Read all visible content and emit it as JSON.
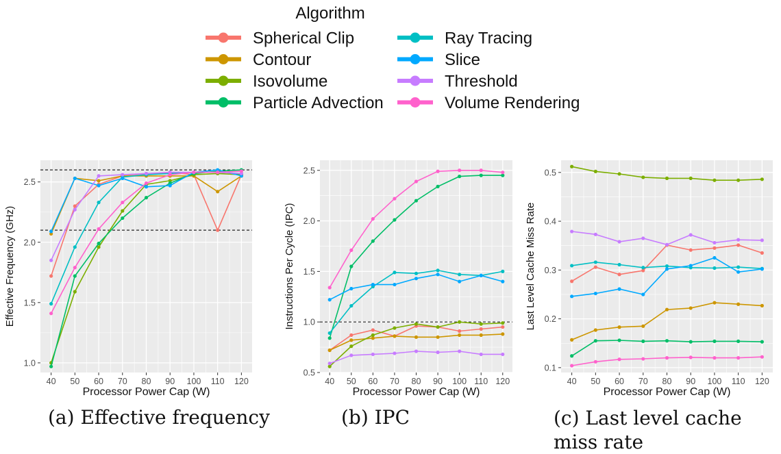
{
  "legend": {
    "title": "Algorithm",
    "items": [
      {
        "name": "Spherical Clip",
        "color": "#F8766D"
      },
      {
        "name": "Contour",
        "color": "#CD9600"
      },
      {
        "name": "Isovolume",
        "color": "#7CAE00"
      },
      {
        "name": "Particle Advection",
        "color": "#00BE67"
      },
      {
        "name": "Ray Tracing",
        "color": "#00BFC4"
      },
      {
        "name": "Slice",
        "color": "#00A9FF"
      },
      {
        "name": "Threshold",
        "color": "#C77CFF"
      },
      {
        "name": "Volume Rendering",
        "color": "#FF61CC"
      }
    ]
  },
  "captions": {
    "a": "(a) Effective frequency",
    "b": "(b) IPC",
    "c": "(c) Last level cache miss rate"
  },
  "chart_data": [
    {
      "id": "a",
      "type": "line",
      "xlabel": "Processor Power Cap (W)",
      "ylabel": "Effective Frequency (GHz)",
      "x": [
        40,
        50,
        60,
        70,
        80,
        90,
        100,
        110,
        120
      ],
      "xlim": [
        35.5,
        124.5
      ],
      "ylim": [
        0.92,
        2.68
      ],
      "yticks": [
        1.0,
        1.5,
        2.0,
        2.5
      ],
      "ytick_labels": [
        "1.0",
        "1.5",
        "2.0",
        "2.5"
      ],
      "hlines": [
        2.1,
        2.6
      ],
      "series": [
        {
          "name": "Spherical Clip",
          "values": [
            1.72,
            2.3,
            2.48,
            2.55,
            2.56,
            2.58,
            2.56,
            2.1,
            2.56
          ]
        },
        {
          "name": "Contour",
          "values": [
            2.07,
            2.53,
            2.51,
            2.55,
            2.55,
            2.55,
            2.55,
            2.42,
            2.55
          ]
        },
        {
          "name": "Isovolume",
          "values": [
            1.0,
            1.59,
            1.96,
            2.26,
            2.48,
            2.51,
            2.56,
            2.57,
            2.56
          ]
        },
        {
          "name": "Particle Advection",
          "values": [
            0.97,
            1.72,
            1.99,
            2.2,
            2.37,
            2.49,
            2.57,
            2.59,
            2.6
          ]
        },
        {
          "name": "Ray Tracing",
          "values": [
            1.49,
            1.96,
            2.33,
            2.54,
            2.56,
            2.57,
            2.58,
            2.58,
            2.57
          ]
        },
        {
          "name": "Slice",
          "values": [
            2.09,
            2.53,
            2.47,
            2.53,
            2.46,
            2.47,
            2.58,
            2.6,
            2.55
          ]
        },
        {
          "name": "Threshold",
          "values": [
            1.85,
            2.27,
            2.55,
            2.56,
            2.57,
            2.58,
            2.58,
            2.58,
            2.57
          ]
        },
        {
          "name": "Volume Rendering",
          "values": [
            1.41,
            1.79,
            2.11,
            2.33,
            2.49,
            2.56,
            2.58,
            2.58,
            2.59
          ]
        }
      ]
    },
    {
      "id": "b",
      "type": "line",
      "xlabel": "Processor Power Cap (W)",
      "ylabel": "Instructions Per Cycle (IPC)",
      "x": [
        40,
        50,
        60,
        70,
        80,
        90,
        100,
        110,
        120
      ],
      "xlim": [
        35.5,
        124.5
      ],
      "ylim": [
        0.5,
        2.6
      ],
      "yticks": [
        0.5,
        1.0,
        1.5,
        2.0,
        2.5
      ],
      "ytick_labels": [
        "0.5",
        "1.0",
        "1.5",
        "2.0",
        "2.5"
      ],
      "hlines": [
        1.0
      ],
      "series": [
        {
          "name": "Spherical Clip",
          "values": [
            0.72,
            0.87,
            0.92,
            0.86,
            0.96,
            0.95,
            0.91,
            0.93,
            0.95
          ]
        },
        {
          "name": "Contour",
          "values": [
            0.72,
            0.82,
            0.84,
            0.86,
            0.85,
            0.85,
            0.87,
            0.87,
            0.88
          ]
        },
        {
          "name": "Isovolume",
          "values": [
            0.56,
            0.76,
            0.87,
            0.94,
            0.98,
            0.95,
            1.0,
            0.98,
            0.99
          ]
        },
        {
          "name": "Particle Advection",
          "values": [
            0.84,
            1.55,
            1.8,
            2.01,
            2.2,
            2.34,
            2.44,
            2.45,
            2.45
          ]
        },
        {
          "name": "Ray Tracing",
          "values": [
            0.89,
            1.16,
            1.35,
            1.49,
            1.48,
            1.51,
            1.47,
            1.46,
            1.5
          ]
        },
        {
          "name": "Slice",
          "values": [
            1.22,
            1.33,
            1.37,
            1.37,
            1.43,
            1.47,
            1.4,
            1.46,
            1.4
          ]
        },
        {
          "name": "Threshold",
          "values": [
            0.59,
            0.67,
            0.68,
            0.69,
            0.71,
            0.7,
            0.71,
            0.68,
            0.68
          ]
        },
        {
          "name": "Volume Rendering",
          "values": [
            1.34,
            1.71,
            2.02,
            2.22,
            2.39,
            2.49,
            2.5,
            2.5,
            2.48
          ]
        }
      ]
    },
    {
      "id": "c",
      "type": "line",
      "xlabel": "Processor Power Cap (W)",
      "ylabel": "Last Level Cache Miss Rate",
      "x": [
        40,
        50,
        60,
        70,
        80,
        90,
        100,
        110,
        120
      ],
      "xlim": [
        35.5,
        124.5
      ],
      "ylim": [
        0.09,
        0.525
      ],
      "yticks": [
        0.1,
        0.2,
        0.3,
        0.4,
        0.5
      ],
      "ytick_labels": [
        "0.1",
        "0.2",
        "0.3",
        "0.4",
        "0.5"
      ],
      "hlines": [],
      "series": [
        {
          "name": "Spherical Clip",
          "values": [
            0.277,
            0.306,
            0.291,
            0.299,
            0.351,
            0.341,
            0.345,
            0.351,
            0.335
          ]
        },
        {
          "name": "Contour",
          "values": [
            0.157,
            0.177,
            0.183,
            0.185,
            0.219,
            0.222,
            0.233,
            0.23,
            0.227
          ]
        },
        {
          "name": "Isovolume",
          "values": [
            0.512,
            0.502,
            0.497,
            0.49,
            0.488,
            0.488,
            0.484,
            0.484,
            0.486
          ]
        },
        {
          "name": "Particle Advection",
          "values": [
            0.124,
            0.155,
            0.156,
            0.154,
            0.155,
            0.153,
            0.154,
            0.154,
            0.153
          ]
        },
        {
          "name": "Ray Tracing",
          "values": [
            0.309,
            0.316,
            0.311,
            0.305,
            0.308,
            0.305,
            0.304,
            0.306,
            0.303
          ]
        },
        {
          "name": "Slice",
          "values": [
            0.246,
            0.252,
            0.261,
            0.25,
            0.302,
            0.309,
            0.325,
            0.296,
            0.302
          ]
        },
        {
          "name": "Threshold",
          "values": [
            0.379,
            0.373,
            0.358,
            0.365,
            0.352,
            0.372,
            0.356,
            0.362,
            0.361
          ]
        },
        {
          "name": "Volume Rendering",
          "values": [
            0.104,
            0.112,
            0.117,
            0.118,
            0.12,
            0.121,
            0.12,
            0.12,
            0.122
          ]
        }
      ]
    }
  ]
}
